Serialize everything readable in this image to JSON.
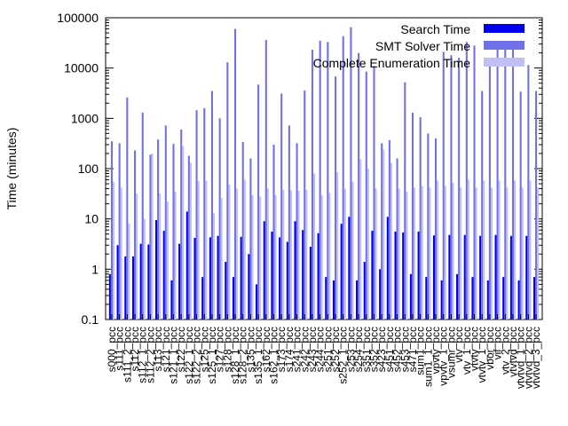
{
  "chart_data": {
    "type": "bar",
    "ylabel": "Time (minutes)",
    "yscale": "log",
    "ylim": [
      0.1,
      100000
    ],
    "ytick_labels": [
      "0.1",
      "1",
      "10",
      "100",
      "1000",
      "10000",
      "100000"
    ],
    "legend_position": "top-right",
    "categories": [
      "s000_pcc",
      "s111_pcc",
      "s111_2_pcc",
      "s112_pcc",
      "s112_1_pcc",
      "s112_2_pcc",
      "s113_pcc",
      "s121_pcc",
      "s121_1_pcc",
      "s122_pcc",
      "s122_1_pcc",
      "s122_2_pcc",
      "s125_pcc",
      "s125_1_pcc",
      "s127_pcc",
      "s128_pcc",
      "s128_1_pcc",
      "s128_2_pcc",
      "s135_pcc",
      "s135_1_pcc",
      "s162_pcc",
      "s162_1_pcc",
      "s173_pcc",
      "s174_pcc",
      "s241_pcc",
      "s242_pcc",
      "s243_pcc",
      "s244_pcc",
      "s251_pcc",
      "s252_pcc",
      "s252_1_pcc",
      "s253_pcc",
      "s254_pcc",
      "s351_pcc",
      "s352_pcc",
      "s423_pcc",
      "s451_pcc",
      "s452_pcc",
      "s453_pcc",
      "s471_pcc",
      "sum1_pcc",
      "sum1_1_pcc",
      "vpvtv_pcc",
      "vpvtv_1_pcc",
      "vsumr_pcc",
      "vtv_pcc",
      "vtv_1_pcc",
      "vtvtv_pcc",
      "vtvtv_1_pcc",
      "vbor_pcc",
      "vif_pcc",
      "vtv_2_pcc",
      "vtvtvd_pcc",
      "vtvtvd_1_pcc",
      "vtvtvd_2_pcc",
      "vtvtvd_3_pcc"
    ],
    "tick_label_indices": [
      0,
      1,
      2,
      3,
      4,
      5,
      6,
      7,
      8,
      9,
      10,
      11,
      12,
      13,
      14,
      15,
      16,
      17,
      18,
      19,
      20,
      21,
      22,
      23,
      24,
      25,
      26,
      27,
      28,
      29,
      30,
      31,
      32,
      33,
      34,
      35,
      36,
      37,
      38,
      39,
      40,
      41,
      42,
      43,
      44,
      45,
      46,
      47,
      48,
      49,
      50,
      51,
      52,
      53,
      54,
      55
    ],
    "series": [
      {
        "name": "Search Time",
        "color": "#0000ee",
        "values": [
          0.8,
          3.0,
          1.8,
          1.8,
          3.2,
          3.1,
          9.5,
          5.8,
          0.6,
          3.2,
          14.0,
          4.2,
          0.7,
          4.3,
          4.6,
          1.4,
          0.7,
          4.4,
          2.0,
          0.5,
          9.0,
          5.6,
          4.3,
          3.5,
          9.0,
          6.0,
          2.8,
          5.2,
          0.7,
          0.6,
          8.0,
          11.0,
          0.6,
          1.4,
          5.8,
          1.0,
          11.0,
          5.6,
          5.4,
          0.8,
          5.6,
          0.7,
          4.7,
          0.6,
          4.8,
          0.8,
          4.8,
          0.7,
          4.6,
          0.6,
          4.8,
          0.7,
          4.6,
          0.6,
          4.6,
          0.7
        ]
      },
      {
        "name": "SMT Solver Time",
        "color": "#7070e8",
        "values": [
          350,
          320,
          2600,
          230,
          1300,
          190,
          380,
          720,
          310,
          600,
          180,
          1450,
          1600,
          3500,
          1000,
          13000,
          60000,
          340,
          160,
          4700,
          36000,
          300,
          3100,
          720,
          320,
          3600,
          23000,
          35000,
          33000,
          6800,
          43000,
          65000,
          20000,
          8500,
          11000,
          320,
          370,
          160,
          5200,
          1300,
          1050,
          500,
          400,
          21000,
          18000,
          16000,
          33000,
          28000,
          3500,
          11000,
          34000,
          29000,
          30000,
          3400,
          11500,
          3500
        ]
      },
      {
        "name": "Complete Enumeration Time",
        "color": "#c0c0f5",
        "values": [
          55,
          42,
          8,
          32,
          10,
          200,
          32,
          22,
          35,
          280,
          130,
          56,
          58,
          13,
          26,
          48,
          40,
          60,
          30,
          28,
          40,
          30,
          38,
          37,
          36,
          38,
          80,
          30,
          33,
          85,
          40,
          55,
          155,
          100,
          40,
          240,
          130,
          40,
          35,
          42,
          45,
          42,
          58,
          45,
          52,
          42,
          60,
          42,
          58,
          42,
          58,
          42,
          58,
          42,
          58,
          42
        ]
      }
    ]
  }
}
